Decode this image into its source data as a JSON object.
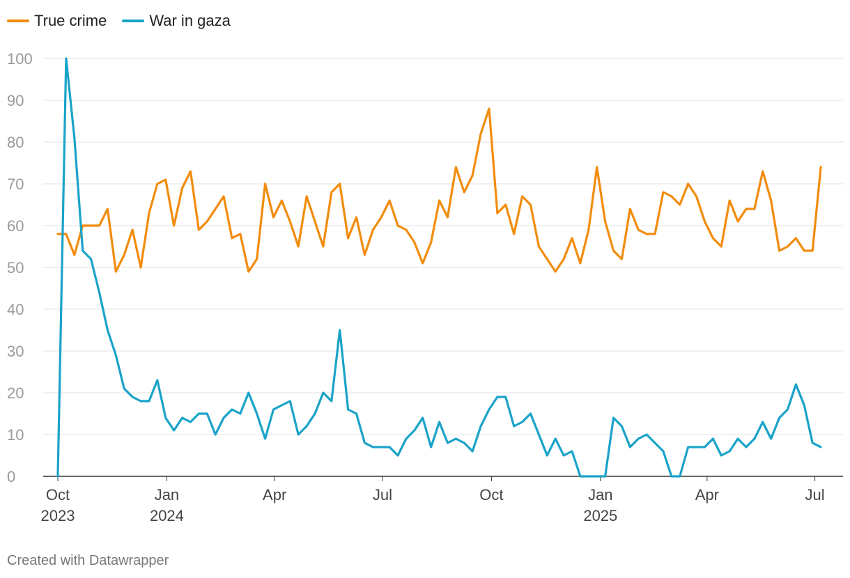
{
  "legend": [
    {
      "label": "True crime",
      "color": "#f28c0d"
    },
    {
      "label": "War in gaza",
      "color": "#1aa3c9"
    }
  ],
  "footer": "Created with Datawrapper",
  "chart_data": {
    "type": "line",
    "x_start": "2023-10-01",
    "x_end": "2025-07-13",
    "ylim": [
      0,
      100
    ],
    "yticks": [
      0,
      10,
      20,
      30,
      40,
      50,
      60,
      70,
      80,
      90,
      100
    ],
    "xticks": [
      {
        "date": "2023-10-01",
        "line1": "Oct",
        "line2": "2023"
      },
      {
        "date": "2024-01-01",
        "line1": "Jan",
        "line2": "2024"
      },
      {
        "date": "2024-04-01",
        "line1": "Apr",
        "line2": ""
      },
      {
        "date": "2024-07-01",
        "line1": "Jul",
        "line2": ""
      },
      {
        "date": "2024-10-01",
        "line1": "Oct",
        "line2": ""
      },
      {
        "date": "2025-01-01",
        "line1": "Jan",
        "line2": "2025"
      },
      {
        "date": "2025-04-01",
        "line1": "Apr",
        "line2": ""
      },
      {
        "date": "2025-07-01",
        "line1": "Jul",
        "line2": ""
      }
    ],
    "grid": true,
    "legend_position": "top-left",
    "dates": [
      "2023-10-01",
      "2023-10-08",
      "2023-10-15",
      "2023-10-22",
      "2023-10-29",
      "2023-11-05",
      "2023-11-12",
      "2023-11-19",
      "2023-11-26",
      "2023-12-03",
      "2023-12-10",
      "2023-12-17",
      "2023-12-24",
      "2023-12-31",
      "2024-01-07",
      "2024-01-14",
      "2024-01-21",
      "2024-01-28",
      "2024-02-04",
      "2024-02-11",
      "2024-02-18",
      "2024-02-25",
      "2024-03-03",
      "2024-03-10",
      "2024-03-17",
      "2024-03-24",
      "2024-03-31",
      "2024-04-07",
      "2024-04-14",
      "2024-04-21",
      "2024-04-28",
      "2024-05-05",
      "2024-05-12",
      "2024-05-19",
      "2024-05-26",
      "2024-06-02",
      "2024-06-09",
      "2024-06-16",
      "2024-06-23",
      "2024-06-30",
      "2024-07-07",
      "2024-07-14",
      "2024-07-21",
      "2024-07-28",
      "2024-08-04",
      "2024-08-11",
      "2024-08-18",
      "2024-08-25",
      "2024-09-01",
      "2024-09-08",
      "2024-09-15",
      "2024-09-22",
      "2024-09-29",
      "2024-10-06",
      "2024-10-13",
      "2024-10-20",
      "2024-10-27",
      "2024-11-03",
      "2024-11-10",
      "2024-11-17",
      "2024-11-24",
      "2024-12-01",
      "2024-12-08",
      "2024-12-15",
      "2024-12-22",
      "2024-12-29",
      "2025-01-05",
      "2025-01-12",
      "2025-01-19",
      "2025-01-26",
      "2025-02-02",
      "2025-02-09",
      "2025-02-16",
      "2025-02-23",
      "2025-03-02",
      "2025-03-09",
      "2025-03-16",
      "2025-03-23",
      "2025-03-30",
      "2025-04-06",
      "2025-04-13",
      "2025-04-20",
      "2025-04-27",
      "2025-05-04",
      "2025-05-11",
      "2025-05-18",
      "2025-05-25",
      "2025-06-01",
      "2025-06-08",
      "2025-06-15",
      "2025-06-22",
      "2025-06-29",
      "2025-07-06"
    ],
    "series": [
      {
        "name": "True crime",
        "color": "#f28c0d",
        "values": [
          58,
          58,
          53,
          60,
          60,
          60,
          64,
          49,
          53,
          59,
          50,
          63,
          70,
          71,
          60,
          69,
          73,
          59,
          61,
          64,
          67,
          57,
          58,
          49,
          52,
          70,
          62,
          66,
          61,
          55,
          67,
          61,
          55,
          68,
          70,
          57,
          62,
          53,
          59,
          62,
          66,
          60,
          59,
          56,
          51,
          56,
          66,
          62,
          74,
          68,
          72,
          82,
          88,
          63,
          65,
          58,
          67,
          65,
          55,
          52,
          49,
          52,
          57,
          51,
          59,
          74,
          61,
          54,
          52,
          64,
          59,
          58,
          58,
          68,
          67,
          65,
          70,
          67,
          61,
          57,
          55,
          66,
          61,
          64,
          64,
          73,
          66,
          54,
          55,
          57,
          54,
          54,
          74
        ]
      },
      {
        "name": "War in gaza",
        "color": "#1aa3c9",
        "values": [
          0,
          100,
          81,
          54,
          52,
          44,
          35,
          29,
          21,
          19,
          18,
          18,
          23,
          14,
          11,
          14,
          13,
          15,
          15,
          10,
          14,
          16,
          15,
          20,
          15,
          9,
          16,
          17,
          18,
          10,
          12,
          15,
          20,
          18,
          35,
          16,
          15,
          8,
          7,
          7,
          7,
          5,
          9,
          11,
          14,
          7,
          13,
          8,
          9,
          8,
          6,
          12,
          16,
          19,
          19,
          12,
          13,
          15,
          10,
          5,
          9,
          5,
          6,
          0,
          0,
          0,
          0,
          14,
          12,
          7,
          9,
          10,
          8,
          6,
          0,
          0,
          7,
          7,
          7,
          9,
          5,
          6,
          9,
          7,
          9,
          13,
          9,
          14,
          16,
          22,
          17,
          8,
          7
        ]
      }
    ]
  }
}
